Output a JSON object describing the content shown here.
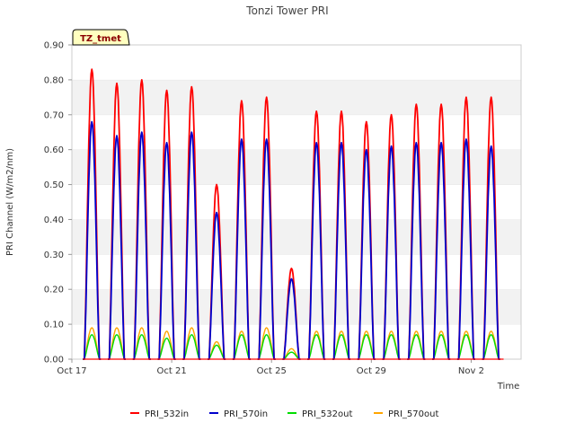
{
  "chart_data": {
    "type": "line",
    "title": "Tonzi Tower PRI",
    "xlabel": "Time",
    "ylabel": "PRI Channel (W/m2/nm)",
    "badge": "TZ_tmet",
    "ylim": [
      0,
      0.9
    ],
    "xlim_days": [
      0,
      18
    ],
    "y_ticks": [
      "0.00",
      "0.10",
      "0.20",
      "0.30",
      "0.40",
      "0.50",
      "0.60",
      "0.70",
      "0.80",
      "0.90"
    ],
    "x_ticks": [
      {
        "day": 0,
        "label": "Oct 17"
      },
      {
        "day": 4,
        "label": "Oct 21"
      },
      {
        "day": 8,
        "label": "Oct 25"
      },
      {
        "day": 12,
        "label": "Oct 29"
      },
      {
        "day": 16,
        "label": "Nov 2"
      }
    ],
    "series_colors": {
      "PRI_532in": "#ff0000",
      "PRI_570in": "#0000cc",
      "PRI_532out": "#00dd00",
      "PRI_570out": "#ffa500"
    },
    "daily_peaks": [
      {
        "date": "Oct 17",
        "PRI_532in": 0.83,
        "PRI_570in": 0.68,
        "PRI_532out": 0.07,
        "PRI_570out": 0.09
      },
      {
        "date": "Oct 18",
        "PRI_532in": 0.79,
        "PRI_570in": 0.64,
        "PRI_532out": 0.07,
        "PRI_570out": 0.09
      },
      {
        "date": "Oct 19",
        "PRI_532in": 0.8,
        "PRI_570in": 0.65,
        "PRI_532out": 0.07,
        "PRI_570out": 0.09
      },
      {
        "date": "Oct 20",
        "PRI_532in": 0.77,
        "PRI_570in": 0.62,
        "PRI_532out": 0.06,
        "PRI_570out": 0.08
      },
      {
        "date": "Oct 21",
        "PRI_532in": 0.78,
        "PRI_570in": 0.65,
        "PRI_532out": 0.07,
        "PRI_570out": 0.09
      },
      {
        "date": "Oct 22",
        "PRI_532in": 0.5,
        "PRI_570in": 0.42,
        "PRI_532out": 0.04,
        "PRI_570out": 0.05
      },
      {
        "date": "Oct 23",
        "PRI_532in": 0.74,
        "PRI_570in": 0.63,
        "PRI_532out": 0.07,
        "PRI_570out": 0.08
      },
      {
        "date": "Oct 24",
        "PRI_532in": 0.75,
        "PRI_570in": 0.63,
        "PRI_532out": 0.07,
        "PRI_570out": 0.09
      },
      {
        "date": "Oct 25",
        "PRI_532in": 0.26,
        "PRI_570in": 0.23,
        "PRI_532out": 0.02,
        "PRI_570out": 0.03
      },
      {
        "date": "Oct 26",
        "PRI_532in": 0.71,
        "PRI_570in": 0.62,
        "PRI_532out": 0.07,
        "PRI_570out": 0.08
      },
      {
        "date": "Oct 27",
        "PRI_532in": 0.71,
        "PRI_570in": 0.62,
        "PRI_532out": 0.07,
        "PRI_570out": 0.08
      },
      {
        "date": "Oct 28",
        "PRI_532in": 0.68,
        "PRI_570in": 0.6,
        "PRI_532out": 0.07,
        "PRI_570out": 0.08
      },
      {
        "date": "Oct 29",
        "PRI_532in": 0.7,
        "PRI_570in": 0.61,
        "PRI_532out": 0.07,
        "PRI_570out": 0.08
      },
      {
        "date": "Oct 30",
        "PRI_532in": 0.73,
        "PRI_570in": 0.62,
        "PRI_532out": 0.07,
        "PRI_570out": 0.08
      },
      {
        "date": "Oct 31",
        "PRI_532in": 0.73,
        "PRI_570in": 0.62,
        "PRI_532out": 0.07,
        "PRI_570out": 0.08
      },
      {
        "date": "Nov 1",
        "PRI_532in": 0.75,
        "PRI_570in": 0.63,
        "PRI_532out": 0.07,
        "PRI_570out": 0.08
      },
      {
        "date": "Nov 2",
        "PRI_532in": 0.75,
        "PRI_570in": 0.61,
        "PRI_532out": 0.07,
        "PRI_570out": 0.08
      }
    ],
    "legend": [
      "PRI_532in",
      "PRI_570in",
      "PRI_532out",
      "PRI_570out"
    ],
    "legend_position": "bottom",
    "grid": "horizontal bands"
  }
}
